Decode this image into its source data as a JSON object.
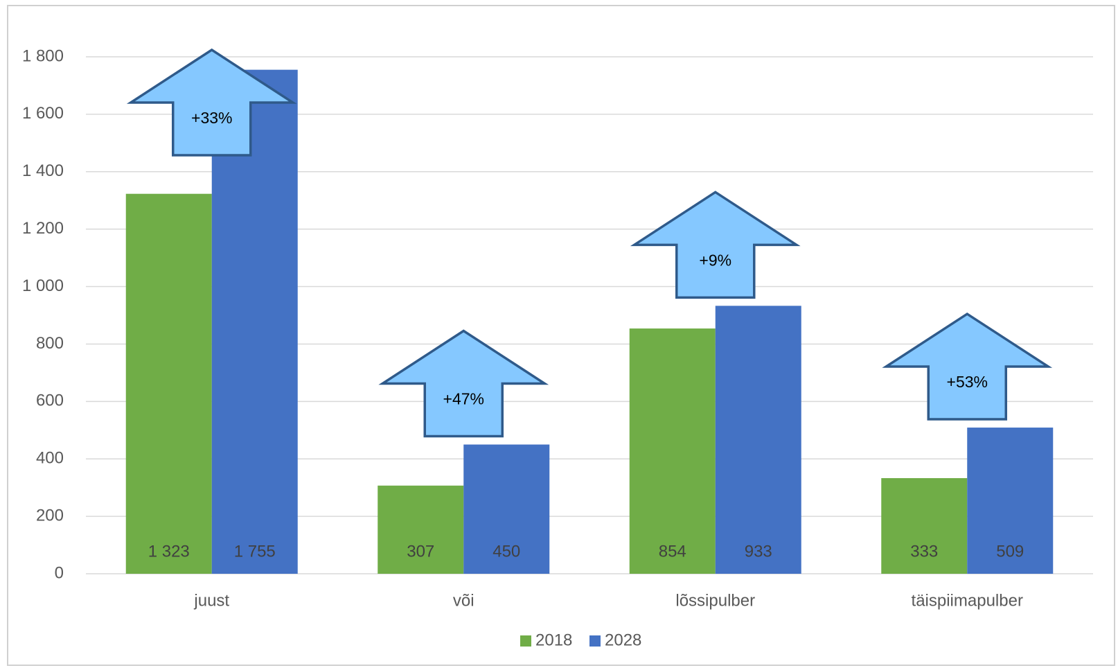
{
  "chart_data": {
    "type": "bar",
    "categories": [
      "juust",
      "või",
      "lõssipulber",
      "täispiimapulber"
    ],
    "series": [
      {
        "name": "2018",
        "color": "#70ad47",
        "values": [
          1323,
          307,
          854,
          333
        ],
        "value_labels": [
          "1 323",
          "307",
          "854",
          "333"
        ]
      },
      {
        "name": "2028",
        "color": "#4472c4",
        "values": [
          1755,
          450,
          933,
          509
        ],
        "value_labels": [
          "1 755",
          "450",
          "933",
          "509"
        ]
      }
    ],
    "annotations": [
      "+33%",
      "+47%",
      "+9%",
      "+53%"
    ],
    "ylim": [
      0,
      1800
    ],
    "yticks": [
      0,
      200,
      400,
      600,
      800,
      {
        "value": 1000,
        "label": "1 000"
      },
      {
        "value": 1200,
        "label": "1 200"
      },
      {
        "value": 1400,
        "label": "1 400"
      },
      {
        "value": 1600,
        "label": "1 600"
      },
      {
        "value": 1800,
        "label": "1 800"
      }
    ],
    "grid": true,
    "legend": "bottom"
  }
}
